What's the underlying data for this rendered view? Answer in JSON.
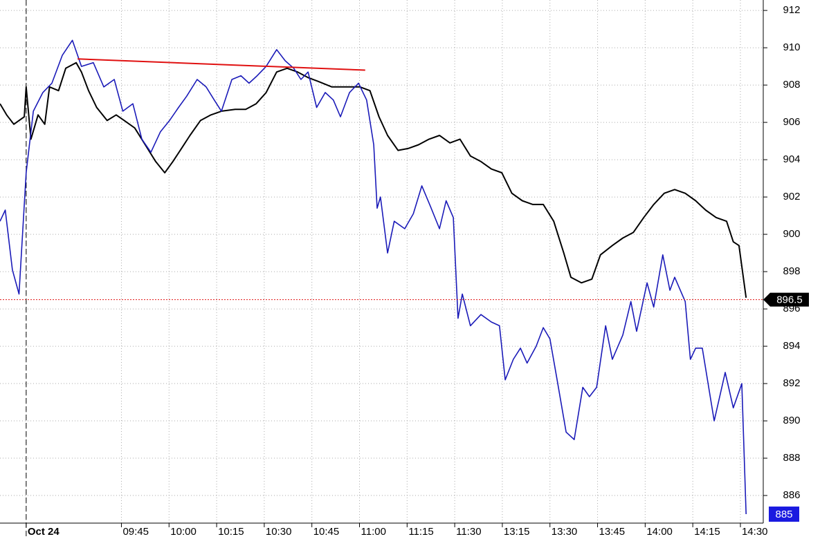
{
  "chart_data": {
    "type": "line",
    "xlim": [
      -0.55,
      15.48
    ],
    "ylim": [
      884.52,
      912.56
    ],
    "xticks": [
      {
        "value": 0,
        "label": "Oct 24"
      },
      {
        "value": 2,
        "label": "09:45"
      },
      {
        "value": 3,
        "label": "10:00"
      },
      {
        "value": 4,
        "label": "10:15"
      },
      {
        "value": 5,
        "label": "10:30"
      },
      {
        "value": 6,
        "label": "10:45"
      },
      {
        "value": 7,
        "label": "11:00"
      },
      {
        "value": 8,
        "label": "11:15"
      },
      {
        "value": 9,
        "label": "11:30"
      },
      {
        "value": 10,
        "label": "13:15"
      },
      {
        "value": 11,
        "label": "13:30"
      },
      {
        "value": 12,
        "label": "13:45"
      },
      {
        "value": 13,
        "label": "14:00"
      },
      {
        "value": 14,
        "label": "14:15"
      },
      {
        "value": 15,
        "label": "14:30"
      }
    ],
    "yticks": [
      886,
      888,
      890,
      892,
      894,
      896,
      898,
      900,
      902,
      904,
      906,
      908,
      910,
      912
    ],
    "grid": true,
    "series": [
      {
        "color": "#000000",
        "x": [
          -0.55,
          -0.41,
          -0.26,
          -0.04,
          0,
          0.1,
          0.25,
          0.39,
          0.49,
          0.68,
          0.83,
          1.05,
          1.16,
          1.31,
          1.48,
          1.7,
          1.89,
          2.06,
          2.28,
          2.5,
          2.72,
          2.91,
          3.08,
          3.26,
          3.44,
          3.66,
          3.88,
          4.1,
          4.39,
          4.61,
          4.83,
          5.04,
          5.26,
          5.48,
          5.7,
          5.92,
          6.13,
          6.42,
          6.72,
          7.01,
          7.22,
          7.41,
          7.59,
          7.81,
          8.02,
          8.24,
          8.46,
          8.68,
          8.9,
          9.11,
          9.33,
          9.55,
          9.77,
          9.99,
          10.2,
          10.42,
          10.64,
          10.86,
          11.08,
          11.29,
          11.44,
          11.66,
          11.88,
          12.06,
          12.31,
          12.53,
          12.75,
          12.97,
          13.18,
          13.4,
          13.62,
          13.84,
          14.06,
          14.27,
          14.49,
          14.71,
          14.85,
          14.97,
          15.12
        ],
        "values": [
          907.0,
          906.4,
          905.9,
          906.3,
          907.9,
          905.1,
          906.4,
          905.9,
          907.9,
          907.7,
          908.9,
          909.2,
          908.7,
          907.7,
          906.8,
          906.1,
          906.4,
          906.1,
          905.7,
          904.8,
          903.9,
          903.3,
          903.9,
          904.6,
          905.3,
          906.1,
          906.4,
          906.6,
          906.7,
          906.7,
          907.0,
          907.6,
          908.7,
          908.9,
          908.7,
          908.4,
          908.2,
          907.9,
          907.9,
          907.9,
          907.7,
          906.3,
          905.3,
          904.5,
          904.6,
          904.8,
          905.1,
          905.3,
          904.9,
          905.1,
          904.2,
          903.9,
          903.5,
          903.3,
          902.2,
          901.8,
          901.6,
          901.6,
          900.7,
          899.0,
          897.7,
          897.4,
          897.6,
          898.9,
          899.4,
          899.8,
          900.1,
          900.9,
          901.6,
          902.2,
          902.4,
          902.2,
          901.8,
          901.3,
          900.9,
          900.7,
          899.6,
          899.4,
          896.6
        ]
      },
      {
        "color": "#1a1ab8",
        "x": [
          -0.55,
          -0.44,
          -0.29,
          -0.15,
          0,
          0.15,
          0.35,
          0.54,
          0.76,
          0.97,
          1.16,
          1.41,
          1.63,
          1.85,
          2.03,
          2.24,
          2.43,
          2.62,
          2.82,
          3.01,
          3.2,
          3.37,
          3.59,
          3.78,
          3.95,
          4.1,
          4.32,
          4.51,
          4.68,
          4.85,
          5.04,
          5.26,
          5.44,
          5.62,
          5.77,
          5.92,
          6.1,
          6.28,
          6.45,
          6.6,
          6.79,
          6.98,
          7.15,
          7.3,
          7.37,
          7.44,
          7.59,
          7.73,
          7.95,
          8.13,
          8.31,
          8.49,
          8.68,
          8.82,
          8.97,
          9.07,
          9.16,
          9.33,
          9.55,
          9.77,
          9.94,
          10.06,
          10.23,
          10.38,
          10.52,
          10.71,
          10.86,
          11.0,
          11.15,
          11.34,
          11.51,
          11.69,
          11.83,
          11.98,
          12.17,
          12.31,
          12.53,
          12.7,
          12.82,
          13.04,
          13.18,
          13.37,
          13.52,
          13.62,
          13.84,
          13.95,
          14.06,
          14.2,
          14.45,
          14.68,
          14.85,
          15.03,
          15.12
        ],
        "values": [
          900.7,
          901.3,
          898.1,
          896.8,
          903.3,
          906.6,
          907.6,
          908.1,
          909.6,
          910.4,
          909.0,
          909.2,
          907.9,
          908.3,
          906.6,
          907.0,
          905.1,
          904.4,
          905.5,
          906.1,
          906.8,
          907.4,
          908.3,
          907.9,
          907.2,
          906.6,
          908.3,
          908.5,
          908.1,
          908.5,
          909.0,
          909.9,
          909.3,
          908.9,
          908.3,
          908.7,
          906.8,
          907.6,
          907.2,
          906.3,
          907.6,
          908.1,
          907.2,
          904.8,
          901.4,
          902.0,
          899.0,
          900.7,
          900.3,
          901.1,
          902.6,
          901.5,
          900.3,
          901.8,
          900.9,
          895.5,
          896.8,
          895.1,
          895.7,
          895.3,
          895.1,
          892.2,
          893.3,
          893.9,
          893.1,
          894.0,
          895.0,
          894.4,
          892.2,
          889.4,
          889.0,
          891.8,
          891.3,
          891.8,
          895.1,
          893.3,
          894.6,
          896.4,
          894.8,
          897.4,
          896.1,
          898.9,
          897.0,
          897.7,
          896.4,
          893.3,
          893.9,
          893.9,
          890.0,
          892.6,
          890.7,
          892.0,
          885.0
        ]
      }
    ],
    "trendline": {
      "color": "#e01010",
      "x": [
        1.08,
        7.12
      ],
      "values": [
        909.4,
        908.8
      ]
    },
    "price_markers": [
      {
        "value": 896.5,
        "label": "896.5",
        "color": "#000000"
      },
      {
        "value": 885,
        "label": "885",
        "color": "#1a1ae0"
      }
    ],
    "session_divider": 0
  }
}
